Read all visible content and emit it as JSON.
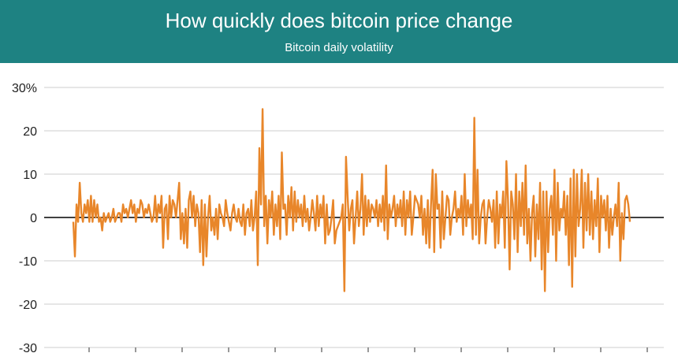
{
  "header": {
    "title": "How quickly does bitcoin price change",
    "subtitle": "Bitcoin daily volatility"
  },
  "colors": {
    "header_bg": "#1e8282",
    "line": "#e8862a",
    "grid": "#cccccc",
    "zero_line": "#000000"
  },
  "chart_data": {
    "type": "line",
    "title": "How quickly does bitcoin price change",
    "subtitle": "Bitcoin daily volatility",
    "xlabel": "",
    "ylabel": "",
    "ylim": [
      -30,
      30
    ],
    "y_ticks": [
      30,
      20,
      10,
      0,
      -10,
      -20,
      -30
    ],
    "y_tick_labels": [
      "30%",
      "20",
      "10",
      "0",
      "-10",
      "-20",
      "-30"
    ],
    "grid": true,
    "series": [
      {
        "values": [
          -1,
          -9,
          3,
          -1,
          8,
          1,
          -1,
          3,
          1,
          4,
          -1,
          5,
          -1,
          4,
          0,
          3,
          -1,
          0,
          -3,
          1,
          -1,
          0,
          1,
          -1,
          0,
          2,
          -1,
          0,
          1,
          1,
          -1,
          3,
          1,
          2,
          0,
          2,
          4,
          1,
          3,
          -1,
          2,
          1,
          4,
          3,
          0,
          2,
          1,
          3,
          1,
          -1,
          0,
          5,
          -1,
          3,
          1,
          5,
          -7,
          2,
          3,
          -5,
          5,
          0,
          4,
          3,
          0,
          4,
          8,
          -5,
          1,
          -6,
          2,
          -7,
          4,
          6,
          0,
          5,
          -2,
          3,
          1,
          -8,
          4,
          -11,
          3,
          -9,
          0,
          5,
          -3,
          0,
          -4,
          2,
          -5,
          3,
          1,
          0,
          -2,
          4,
          1,
          -1,
          -3,
          1,
          3,
          0,
          -1,
          2,
          -1,
          -2,
          3,
          -4,
          1,
          2,
          -2,
          4,
          -3,
          0,
          6,
          -11,
          16,
          3,
          25,
          -2,
          5,
          -6,
          4,
          0,
          6,
          -4,
          3,
          -2,
          5,
          -5,
          15,
          2,
          3,
          -4,
          5,
          0,
          7,
          -3,
          6,
          -1,
          4,
          0,
          3,
          -2,
          5,
          -1,
          2,
          -3,
          0,
          4,
          1,
          -3,
          5,
          -2,
          3,
          0,
          5,
          -6,
          3,
          -4,
          -3,
          0,
          4,
          -6,
          -3,
          -2,
          -1,
          0,
          3,
          -17,
          14,
          5,
          -3,
          2,
          4,
          -6,
          0,
          6,
          -2,
          2,
          10,
          -4,
          5,
          -2,
          4,
          -1,
          3,
          2,
          0,
          4,
          -2,
          3,
          -1,
          5,
          -3,
          12,
          -5,
          3,
          0,
          2,
          5,
          -2,
          3,
          0,
          4,
          -2,
          6,
          -4,
          4,
          0,
          6,
          -4,
          0,
          5,
          4,
          3,
          0,
          5,
          -4,
          2,
          -6,
          4,
          -7,
          3,
          11,
          -8,
          10,
          2,
          3,
          -7,
          6,
          -5,
          0,
          5,
          4,
          -4,
          0,
          2,
          6,
          -1,
          2,
          0,
          5,
          -4,
          10,
          -2,
          4,
          0,
          3,
          -5,
          23,
          -4,
          11,
          -6,
          0,
          3,
          4,
          -6,
          0,
          4,
          2,
          -1,
          4,
          -7,
          6,
          -6,
          3,
          0,
          6,
          -7,
          13,
          4,
          -12,
          6,
          3,
          -5,
          10,
          -8,
          6,
          -2,
          8,
          -4,
          12,
          -6,
          2,
          -10,
          1,
          5,
          -9,
          3,
          -5,
          8,
          -12,
          6,
          -17,
          6,
          -8,
          2,
          5,
          -4,
          11,
          -10,
          8,
          -3,
          2,
          0,
          6,
          -4,
          5,
          -11,
          9,
          -16,
          11,
          -9,
          10,
          -2,
          2,
          11,
          -7,
          8,
          -3,
          10,
          -4,
          6,
          -5,
          4,
          -2,
          9,
          -8,
          5,
          0,
          4,
          -3,
          5,
          -7,
          2,
          -4,
          0,
          3,
          -2,
          8,
          -10,
          1,
          -5,
          4,
          5,
          3,
          -1
        ]
      }
    ]
  }
}
